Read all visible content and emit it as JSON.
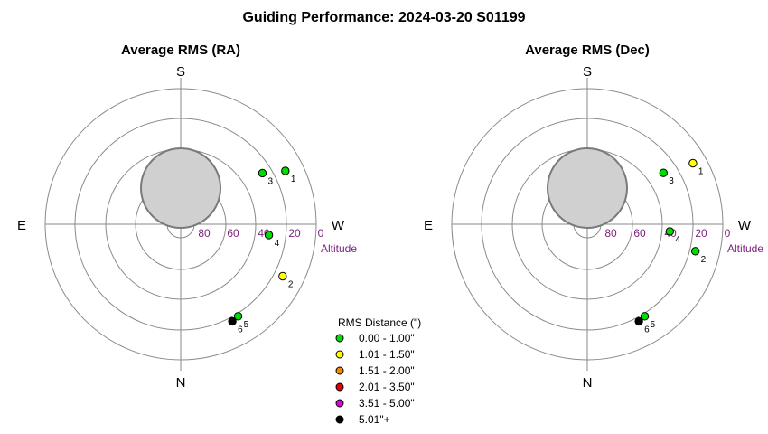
{
  "page": {
    "title": "Guiding Performance: 2024-03-20 S01199"
  },
  "chart_data": [
    {
      "type": "scatter",
      "subtype": "polar",
      "title": "Average RMS (RA)",
      "directions": {
        "top": "S",
        "bottom": "N",
        "left": "E",
        "right": "W"
      },
      "altitude_ticks": [
        "80",
        "60",
        "40",
        "20",
        "0"
      ],
      "altitude_label": "Altitude",
      "altitude_range": [
        0,
        90
      ],
      "ring_altitudes": [
        0,
        20,
        40,
        60,
        80
      ],
      "points": [
        {
          "label": "1",
          "az": 297,
          "alt": 12,
          "rms_class": "0.00 - 1.00\""
        },
        {
          "label": "2",
          "az": 243,
          "alt": 14,
          "rms_class": "1.01 - 1.50\""
        },
        {
          "label": "3",
          "az": 302,
          "alt": 26,
          "rms_class": "0.00 - 1.00\""
        },
        {
          "label": "4",
          "az": 263,
          "alt": 31,
          "rms_class": "0.00 - 1.00\""
        },
        {
          "label": "5",
          "az": 212,
          "alt": 18,
          "rms_class": "0.00 - 1.00\""
        },
        {
          "label": "6",
          "az": 208,
          "alt": 17,
          "rms_class": "5.01\"+"
        }
      ],
      "moon": {
        "az": 0,
        "alt": 66,
        "radius_alt": 12
      }
    },
    {
      "type": "scatter",
      "subtype": "polar",
      "title": "Average RMS (Dec)",
      "directions": {
        "top": "S",
        "bottom": "N",
        "left": "E",
        "right": "W"
      },
      "altitude_ticks": [
        "80",
        "60",
        "40",
        "20",
        "0"
      ],
      "altitude_label": "Altitude",
      "altitude_range": [
        0,
        90
      ],
      "ring_altitudes": [
        0,
        20,
        40,
        60,
        80
      ],
      "points": [
        {
          "label": "1",
          "az": 300,
          "alt": 9,
          "rms_class": "1.01 - 1.50\""
        },
        {
          "label": "2",
          "az": 256,
          "alt": 16,
          "rms_class": "0.00 - 1.00\""
        },
        {
          "label": "3",
          "az": 304,
          "alt": 29,
          "rms_class": "0.00 - 1.00\""
        },
        {
          "label": "4",
          "az": 265,
          "alt": 35,
          "rms_class": "0.00 - 1.00\""
        },
        {
          "label": "5",
          "az": 212,
          "alt": 18,
          "rms_class": "0.00 - 1.00\""
        },
        {
          "label": "6",
          "az": 208,
          "alt": 17,
          "rms_class": "5.01\"+"
        }
      ],
      "moon": {
        "az": 0,
        "alt": 66,
        "radius_alt": 12
      }
    }
  ],
  "legend": {
    "title": "RMS Distance (\")",
    "entries": [
      {
        "label": "0.00 - 1.00\"",
        "color": "#00dd00"
      },
      {
        "label": "1.01 - 1.50\"",
        "color": "#ffff00"
      },
      {
        "label": "1.51 - 2.00\"",
        "color": "#f08c00"
      },
      {
        "label": "2.01 - 3.50\"",
        "color": "#e00000"
      },
      {
        "label": "3.51 - 5.00\"",
        "color": "#e000e0"
      },
      {
        "label": "5.01\"+",
        "color": "#000000"
      }
    ]
  },
  "colors": {
    "ring": "#8a8a8a",
    "axis": "#8a8a8a",
    "altitude_text": "#7b1e7b",
    "moon_fill": "#d0d0d0",
    "moon_stroke": "#7a7a7a"
  }
}
